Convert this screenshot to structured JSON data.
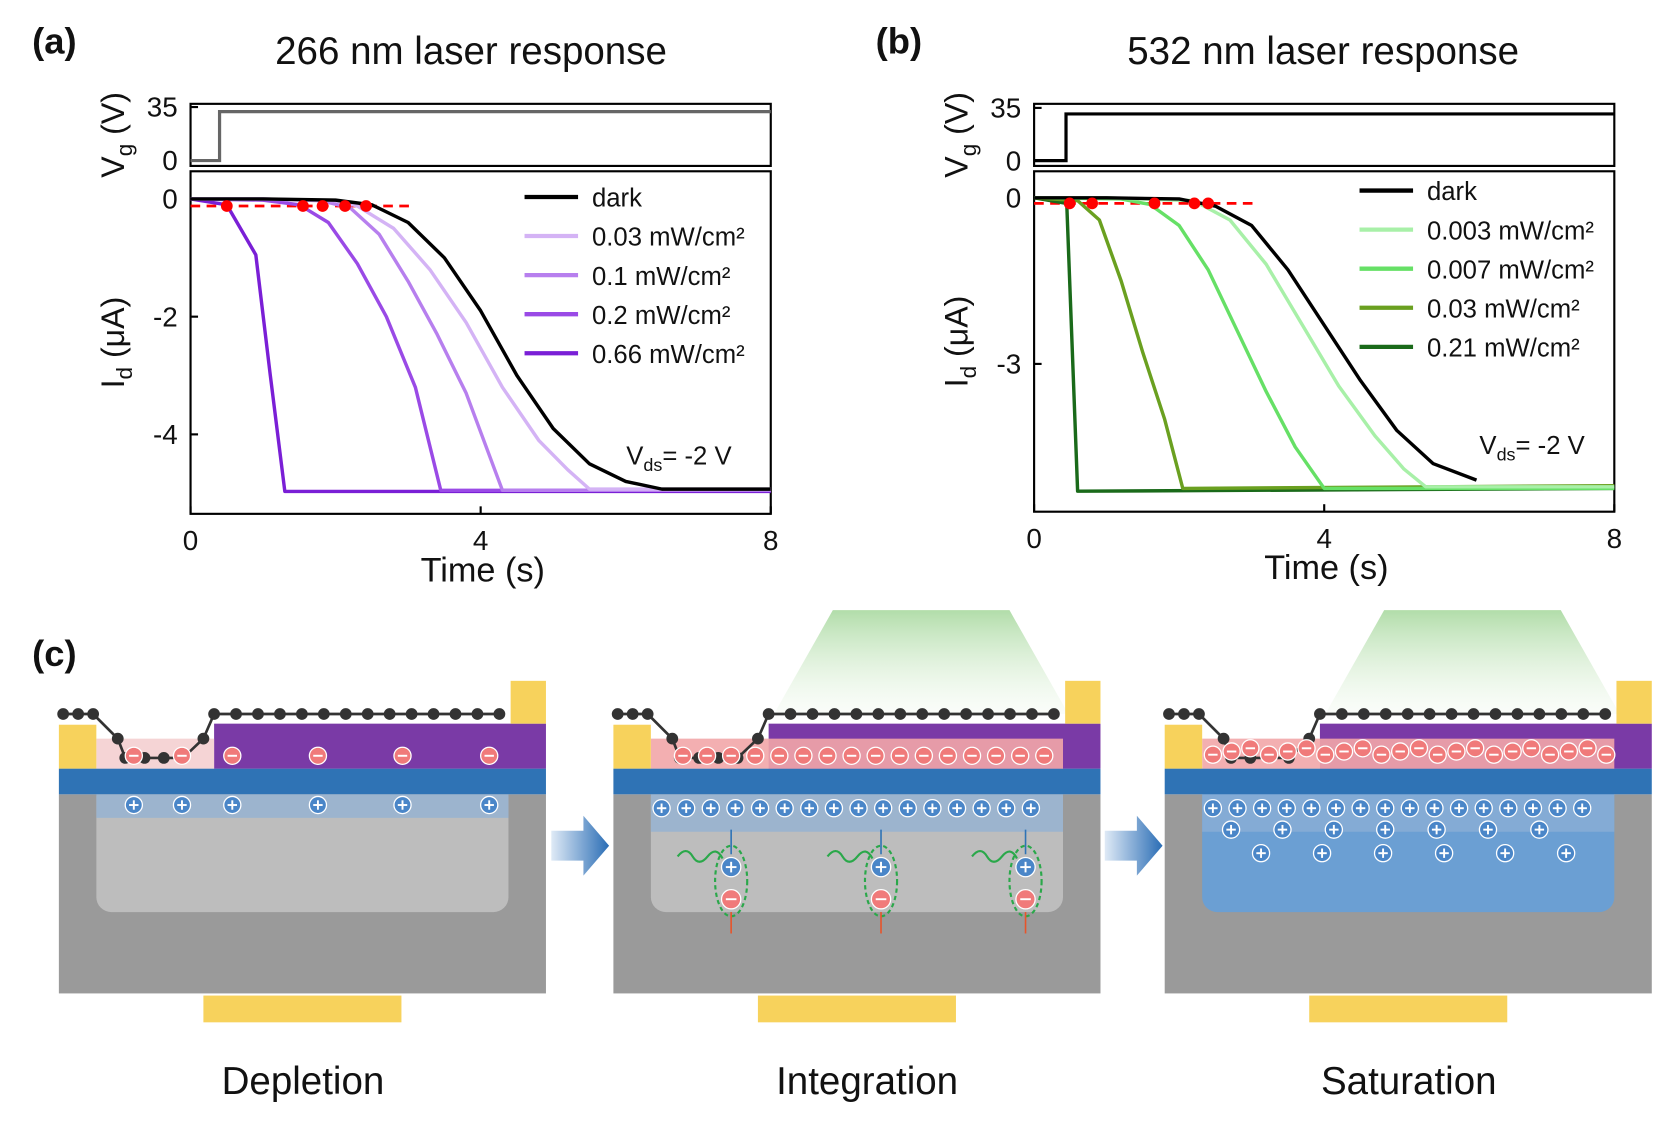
{
  "chart_data": [
    {
      "type": "line",
      "panel": "(a)",
      "title": "266 nm laser response",
      "gate": {
        "ylabel": [
          "V",
          "g",
          " (V)"
        ],
        "ylim": [
          -3.5,
          37.1
        ],
        "yticks": [
          0,
          35
        ],
        "x": [
          0,
          0.4,
          0.4,
          8
        ],
        "values": [
          0,
          0,
          32,
          32
        ],
        "color": "#666666"
      },
      "ylabel": [
        "I",
        "d",
        " (μA)"
      ],
      "xlabel": "Time (s)",
      "xlim": [
        0,
        8
      ],
      "xticks": [
        0,
        4,
        8
      ],
      "ylim": [
        -5.35,
        0.47
      ],
      "yticks": [
        0,
        -2,
        -4
      ],
      "annotation": [
        "V",
        "ds",
        "= -2 V"
      ],
      "series": [
        {
          "name": "dark",
          "color": "#000000",
          "x": [
            0,
            1,
            2,
            2.5,
            3,
            3.5,
            4,
            4.5,
            5,
            5.5,
            6,
            6.5,
            8
          ],
          "values": [
            0,
            0,
            -0.02,
            -0.1,
            -0.4,
            -1.0,
            -1.9,
            -3.0,
            -3.9,
            -4.5,
            -4.8,
            -4.93,
            -4.93
          ]
        },
        {
          "name": "0.03 mW/cm²",
          "color": "#d4b3f5",
          "x": [
            0,
            1,
            2,
            2.3,
            2.8,
            3.3,
            3.8,
            4.3,
            4.8,
            5.2,
            5.5,
            8
          ],
          "values": [
            0,
            0,
            -0.03,
            -0.12,
            -0.5,
            -1.2,
            -2.1,
            -3.2,
            -4.1,
            -4.6,
            -4.93,
            -4.93
          ]
        },
        {
          "name": "0.1 mW/cm²",
          "color": "#b77fee",
          "x": [
            0,
            1,
            1.8,
            2.2,
            2.6,
            3,
            3.4,
            3.8,
            4.3,
            8
          ],
          "values": [
            0,
            0,
            -0.03,
            -0.15,
            -0.6,
            -1.4,
            -2.3,
            -3.3,
            -4.95,
            -4.95
          ]
        },
        {
          "name": "0.2 mW/cm²",
          "color": "#9a4ae6",
          "x": [
            0,
            1,
            1.5,
            1.9,
            2.3,
            2.7,
            3.1,
            3.45,
            8
          ],
          "values": [
            0,
            -0.02,
            -0.1,
            -0.4,
            -1.1,
            -2.0,
            -3.2,
            -4.95,
            -4.95
          ]
        },
        {
          "name": "0.66 mW/cm²",
          "color": "#7a1fd6",
          "x": [
            0,
            0.5,
            0.9,
            1.1,
            1.3,
            8
          ],
          "values": [
            0,
            -0.1,
            -0.95,
            -3.0,
            -4.97,
            -4.97
          ]
        }
      ],
      "onset": {
        "color": "#ff0000",
        "x": [
          0.5,
          1.55,
          1.82,
          2.13,
          2.42
        ],
        "values": [
          -0.12,
          -0.12,
          -0.12,
          -0.12,
          -0.12
        ]
      },
      "threshold": {
        "color": "#ff0000",
        "value": -0.12,
        "x": [
          0,
          3.05
        ]
      }
    },
    {
      "type": "line",
      "panel": "(b)",
      "title": "532 nm laser response",
      "gate": {
        "ylabel": [
          "V",
          "g",
          " (V)"
        ],
        "ylim": [
          -3.5,
          37.7
        ],
        "yticks": [
          0,
          35
        ],
        "x": [
          0,
          0.44,
          0.44,
          8
        ],
        "values": [
          0,
          0,
          31,
          31
        ],
        "color": "#000000"
      },
      "ylabel": [
        "I",
        "d",
        " (μA)"
      ],
      "xlabel": "Time (s)",
      "xlim": [
        0,
        8
      ],
      "xticks": [
        0,
        4,
        8
      ],
      "ylim": [
        -5.67,
        0.48
      ],
      "yticks": [
        0,
        -3
      ],
      "annotation": [
        "V",
        "ds",
        "= -2 V"
      ],
      "series": [
        {
          "name": "dark",
          "color": "#000000",
          "x": [
            0,
            1,
            2,
            2.5,
            3,
            3.5,
            4,
            4.5,
            5,
            5.5,
            6.1
          ],
          "values": [
            0,
            0,
            -0.02,
            -0.15,
            -0.5,
            -1.3,
            -2.3,
            -3.3,
            -4.2,
            -4.8,
            -5.1
          ]
        },
        {
          "name": "0.003 mW/cm²",
          "color": "#a8f0a8",
          "x": [
            0,
            1,
            2.2,
            2.7,
            3.2,
            3.7,
            4.2,
            4.7,
            5.1,
            5.4,
            8
          ],
          "values": [
            0,
            0,
            -0.05,
            -0.4,
            -1.2,
            -2.3,
            -3.4,
            -4.3,
            -4.9,
            -5.22,
            -5.22
          ]
        },
        {
          "name": "0.007 mW/cm²",
          "color": "#66e066",
          "x": [
            0,
            1.2,
            1.6,
            2,
            2.4,
            2.8,
            3.2,
            3.6,
            4,
            8
          ],
          "values": [
            0,
            -0.02,
            -0.12,
            -0.5,
            -1.3,
            -2.4,
            -3.5,
            -4.5,
            -5.25,
            -5.25
          ]
        },
        {
          "name": "0.03 mW/cm²",
          "color": "#6aa020",
          "x": [
            0,
            0.6,
            0.9,
            1.2,
            1.5,
            1.8,
            2.05,
            8
          ],
          "values": [
            0,
            -0.05,
            -0.4,
            -1.5,
            -2.8,
            -4.0,
            -5.25,
            -5.2
          ]
        },
        {
          "name": "0.21 mW/cm²",
          "color": "#1a6a1a",
          "x": [
            0,
            0.45,
            0.6,
            8
          ],
          "values": [
            0,
            -0.1,
            -5.3,
            -5.25
          ]
        }
      ],
      "onset": {
        "color": "#ff0000",
        "x": [
          0.49,
          0.8,
          1.66,
          2.21,
          2.4
        ],
        "values": [
          -0.1,
          -0.1,
          -0.1,
          -0.1,
          -0.1
        ]
      },
      "threshold": {
        "color": "#ff0000",
        "value": -0.1,
        "x": [
          0,
          3.08
        ]
      }
    }
  ],
  "diagram": {
    "label": "(c)",
    "stages": [
      "Depletion",
      "Integration",
      "Saturation"
    ]
  }
}
